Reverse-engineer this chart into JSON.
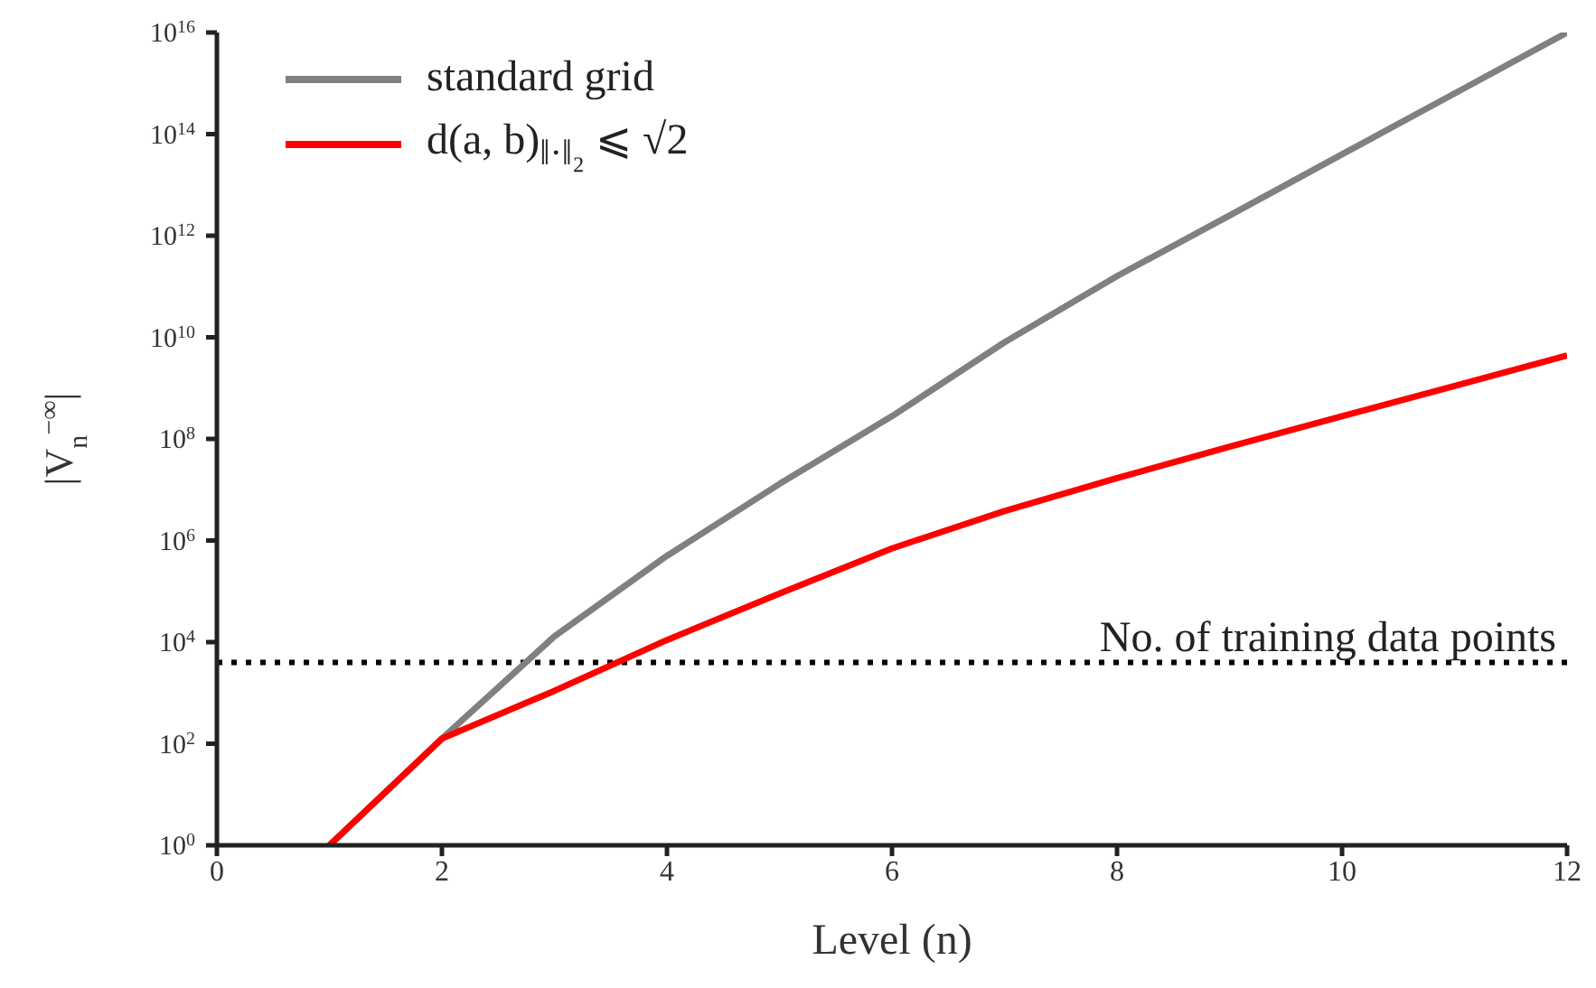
{
  "chart_data": {
    "type": "line",
    "xlabel": "Level (n)",
    "ylabel": "|V$_{n}$$^{−∞}$|",
    "x": [
      1,
      2,
      3,
      4,
      5,
      6,
      7,
      8,
      9,
      10,
      11,
      12
    ],
    "series": [
      {
        "name": "standard grid",
        "color": "#808080",
        "values": [
          1,
          126,
          13000,
          500000,
          13000000,
          280000000,
          8000000000,
          160000000000,
          2500000000000,
          40000000000000,
          630000000000000,
          10000000000000000
        ]
      },
      {
        "name": "d(a, b)$_{‖·‖₂}$ ⩽ √2",
        "color": "#ff0000",
        "values": [
          1,
          126,
          1100,
          11000,
          90000,
          700000,
          3800000,
          17000000,
          70000000,
          280000000,
          1100000000,
          4400000000
        ]
      }
    ],
    "xlim": [
      0,
      12
    ],
    "xticks": [
      0,
      2,
      4,
      6,
      8,
      10,
      12
    ],
    "ylim": [
      1,
      10000000000000000
    ],
    "log": true,
    "yticks": [
      {
        "value": 1,
        "label": "10$^{0}$"
      },
      {
        "value": 100,
        "label": "10$^{2}$"
      },
      {
        "value": 10000,
        "label": "10$^{4}$"
      },
      {
        "value": 1000000,
        "label": "10$^{6}$"
      },
      {
        "value": 100000000,
        "label": "10$^{8}$"
      },
      {
        "value": 10000000000,
        "label": "10$^{10}$"
      },
      {
        "value": 1000000000000,
        "label": "10$^{12}$"
      },
      {
        "value": 100000000000000,
        "label": "10$^{14}$"
      },
      {
        "value": 10000000000000000,
        "label": "10$^{16}$"
      }
    ],
    "ref_lines": [
      {
        "axis": "y",
        "value": 4000,
        "label": "No. of training data points",
        "color": "#000000",
        "line_style": "dotted"
      }
    ],
    "grid": false,
    "legend": "top left",
    "marker": "none",
    "line_style": "solid"
  }
}
